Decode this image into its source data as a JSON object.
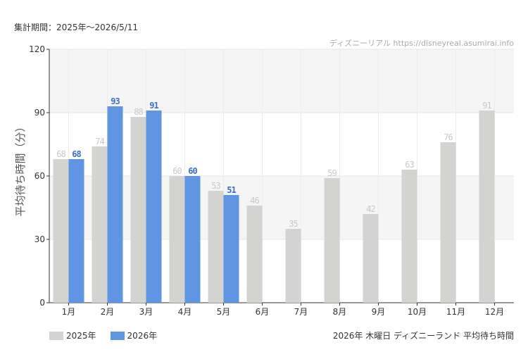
{
  "header": {
    "period": "集計期間：2025年～2026/5/11",
    "watermark": "ディズニーリアル  https://disneyreal.asumirai.info"
  },
  "footer": {
    "title": "2026年 木曜日 ディズニーランド 平均待ち時間"
  },
  "chart_data": {
    "type": "bar",
    "ylabel": "平均待ち時間（分）",
    "ylim": [
      0,
      120
    ],
    "yticks": [
      0,
      30,
      60,
      90,
      120
    ],
    "categories": [
      "1月",
      "2月",
      "3月",
      "4月",
      "5月",
      "6月",
      "7月",
      "8月",
      "9月",
      "10月",
      "11月",
      "12月"
    ],
    "series": [
      {
        "name": "2025年",
        "color": "#d3d3d1",
        "label_color": "#c8c8c8",
        "values": [
          68,
          74,
          88,
          60,
          53,
          46,
          35,
          59,
          42,
          63,
          76,
          91
        ]
      },
      {
        "name": "2026年",
        "color": "#5f95e3",
        "label_color": "#3c6fc4",
        "values": [
          68,
          93,
          91,
          60,
          51,
          null,
          null,
          null,
          null,
          null,
          null,
          null
        ]
      }
    ],
    "grid": true,
    "legend": "bottom-left"
  }
}
